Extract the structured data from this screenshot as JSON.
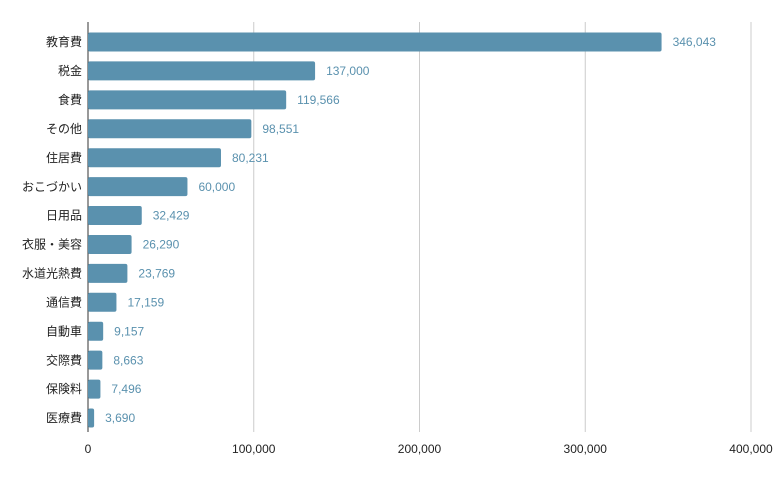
{
  "chart_data": {
    "type": "bar",
    "orientation": "horizontal",
    "categories": [
      "教育費",
      "税金",
      "食費",
      "その他",
      "住居費",
      "おこづかい",
      "日用品",
      "衣服・美容",
      "水道光熱費",
      "通信費",
      "自動車",
      "交際費",
      "保険料",
      "医療費"
    ],
    "values": [
      346043,
      137000,
      119566,
      98551,
      80231,
      60000,
      32429,
      26290,
      23769,
      17159,
      9157,
      8663,
      7496,
      3690
    ],
    "value_labels": [
      "346,043",
      "137,000",
      "119,566",
      "98,551",
      "80,231",
      "60,000",
      "32,429",
      "26,290",
      "23,769",
      "17,159",
      "9,157",
      "8,663",
      "7,496",
      "3,690"
    ],
    "color": "#5a91ae",
    "xlim": [
      0,
      400000
    ],
    "xticks": [
      0,
      {
        "value": 100000,
        "label": "100,000"
      },
      {
        "value": 200000,
        "label": "200,000"
      },
      {
        "value": 300000,
        "label": "300,000"
      },
      {
        "value": 400000,
        "label": "400,000"
      }
    ],
    "grid": true
  }
}
